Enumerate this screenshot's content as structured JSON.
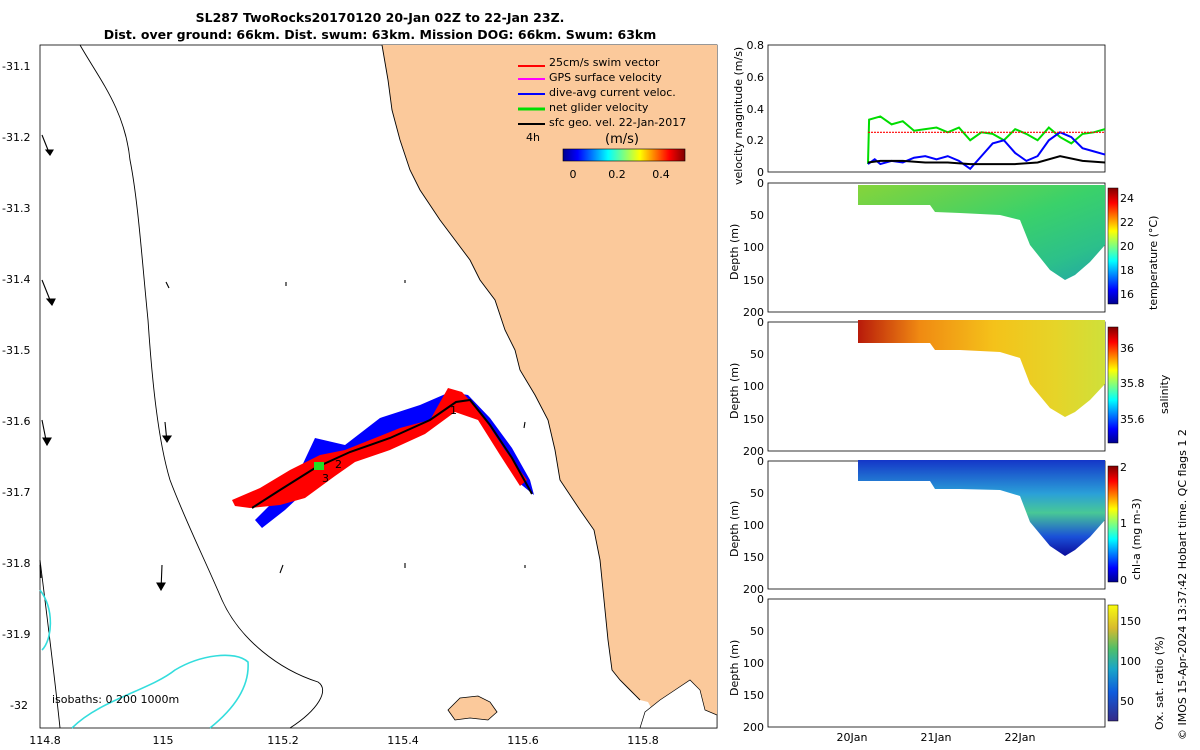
{
  "title": {
    "line1": "SL287 TwoRocks20170120 20-Jan 02Z to 22-Jan 23Z.",
    "line2": "Dist. over ground: 66km. Dist. swum: 63km. Mission DOG: 66km. Swum: 63km"
  },
  "map": {
    "lat_ticks": [
      "-31.1",
      "-31.2",
      "-31.3",
      "-31.4",
      "-31.5",
      "-31.6",
      "-31.7",
      "-31.8",
      "-31.9",
      "-32"
    ],
    "lon_ticks": [
      "114.8",
      "115",
      "115.2",
      "115.4",
      "115.6",
      "115.8"
    ],
    "legend": [
      {
        "label": "25cm/s swim vector",
        "color": "#ff0000"
      },
      {
        "label": "GPS surface velocity",
        "color": "#ff00ff"
      },
      {
        "label": "dive-avg current veloc.",
        "color": "#0000ff"
      },
      {
        "label": "net glider velocity",
        "color": "#00dd00"
      },
      {
        "label": "sfc geo. vel. 22-Jan-2017",
        "color": "#000000"
      }
    ],
    "legend_4h": "4h",
    "colorbar_unit": "(m/s)",
    "colorbar_ticks": [
      "0",
      "0.2",
      "0.4"
    ],
    "isobaths_label": "isobaths: 0   200  1000m",
    "waypoint_labels": [
      "1",
      "2",
      "3"
    ],
    "land_color": "#fbc99b",
    "isobath_color": "#33dddd"
  },
  "chart_data": [
    {
      "type": "line",
      "title": "",
      "ylabel": "velocity magnitude (m/s)",
      "ylim": [
        0,
        0.8
      ],
      "yticks": [
        "0",
        "0.2",
        "0.4",
        "0.6",
        "0.8"
      ],
      "xlim_days": [
        0,
        3.0
      ],
      "series": [
        {
          "name": "net glider velocity",
          "color": "#00dd00",
          "x": [
            0.89,
            0.9,
            1.0,
            1.1,
            1.2,
            1.3,
            1.4,
            1.5,
            1.6,
            1.7,
            1.8,
            1.9,
            2.0,
            2.1,
            2.2,
            2.3,
            2.4,
            2.5,
            2.6,
            2.7,
            2.8,
            2.9,
            3.0
          ],
          "y": [
            0.05,
            0.33,
            0.35,
            0.3,
            0.32,
            0.26,
            0.27,
            0.28,
            0.25,
            0.28,
            0.2,
            0.25,
            0.24,
            0.2,
            0.27,
            0.24,
            0.2,
            0.28,
            0.22,
            0.18,
            0.24,
            0.25,
            0.27
          ]
        },
        {
          "name": "dive-avg current veloc.",
          "color": "#0000ff",
          "x": [
            0.89,
            0.95,
            1.0,
            1.1,
            1.2,
            1.3,
            1.4,
            1.5,
            1.6,
            1.7,
            1.8,
            1.9,
            2.0,
            2.1,
            2.2,
            2.3,
            2.4,
            2.5,
            2.6,
            2.7,
            2.8,
            2.9,
            3.0
          ],
          "y": [
            0.05,
            0.08,
            0.05,
            0.07,
            0.06,
            0.09,
            0.1,
            0.08,
            0.1,
            0.07,
            0.02,
            0.1,
            0.18,
            0.2,
            0.12,
            0.07,
            0.1,
            0.2,
            0.25,
            0.22,
            0.15,
            0.13,
            0.11
          ]
        },
        {
          "name": "sfc geo. vel.",
          "color": "#000000",
          "x": [
            0.89,
            1.0,
            1.2,
            1.4,
            1.6,
            1.8,
            2.0,
            2.2,
            2.4,
            2.6,
            2.8,
            3.0
          ],
          "y": [
            0.06,
            0.07,
            0.07,
            0.06,
            0.06,
            0.05,
            0.05,
            0.05,
            0.06,
            0.1,
            0.07,
            0.06
          ]
        },
        {
          "name": "25cm/s swim vector",
          "color": "#ff0000",
          "x": [
            0.89,
            3.0
          ],
          "y": [
            0.25,
            0.25
          ]
        }
      ]
    },
    {
      "type": "heatmap",
      "ylabel": "Depth (m)",
      "ylim": [
        0,
        200
      ],
      "yticks": [
        "0",
        "50",
        "100",
        "150",
        "200"
      ],
      "colorbar_label": "temperature (°C)",
      "colorbar_ticks": [
        "16",
        "18",
        "20",
        "22",
        "24"
      ]
    },
    {
      "type": "heatmap",
      "ylabel": "Depth (m)",
      "ylim": [
        0,
        200
      ],
      "yticks": [
        "0",
        "50",
        "100",
        "150",
        "200"
      ],
      "colorbar_label": "salinity",
      "colorbar_ticks": [
        "35.6",
        "35.8",
        "36"
      ]
    },
    {
      "type": "heatmap",
      "ylabel": "Depth (m)",
      "ylim": [
        0,
        200
      ],
      "yticks": [
        "0",
        "50",
        "100",
        "150",
        "200"
      ],
      "colorbar_label": "chl-a (mg m-3)",
      "colorbar_ticks": [
        "0",
        "1",
        "2"
      ]
    },
    {
      "type": "heatmap",
      "ylabel": "Depth (m)",
      "ylim": [
        0,
        200
      ],
      "yticks": [
        "0",
        "50",
        "100",
        "150",
        "200"
      ],
      "colorbar_label": "Ox. sat. ratio (%)",
      "colorbar_ticks": [
        "50",
        "100",
        "150"
      ]
    }
  ],
  "time_axis": [
    "20Jan",
    "21Jan",
    "22Jan"
  ],
  "side_note": "© IMOS 15-Apr-2024 13:37:42 Hobart time. QC flags 1  2"
}
